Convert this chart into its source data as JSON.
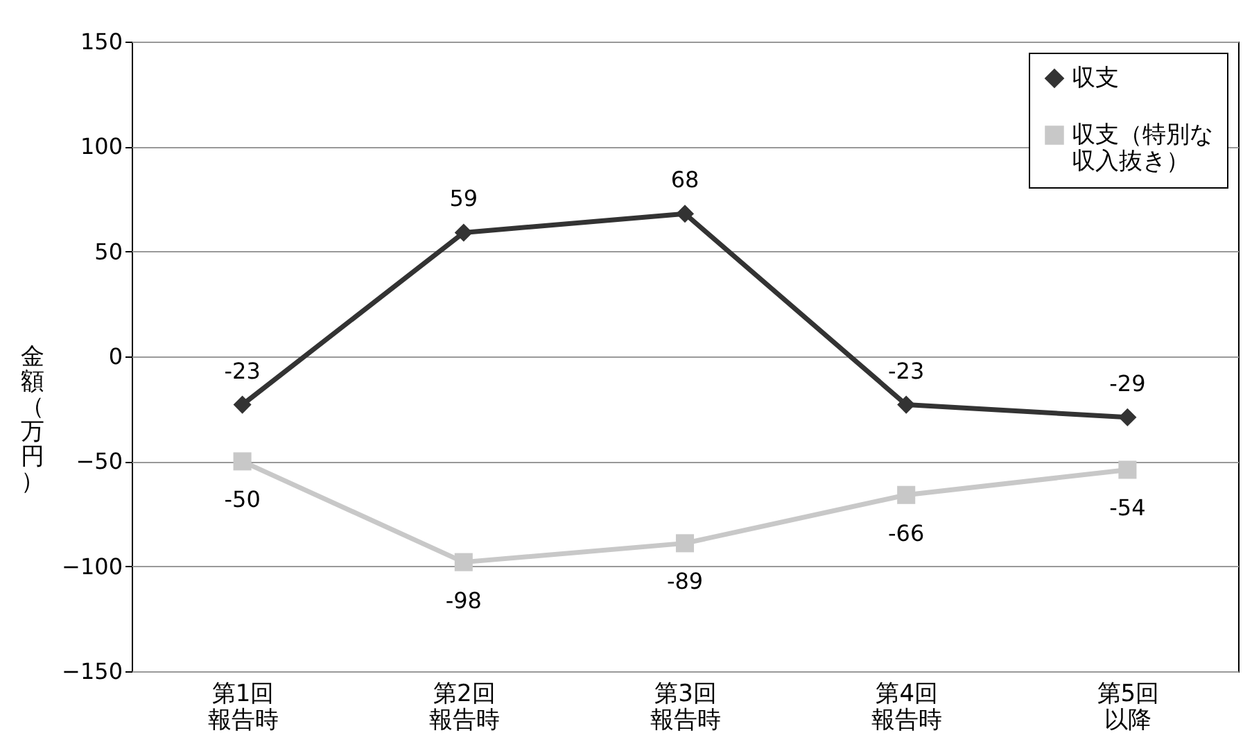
{
  "chart_data": {
    "type": "line",
    "ylabel": "金額（万円）",
    "categories": [
      "第1回報告時",
      "第2回報告時",
      "第3回報告時",
      "第4回報告時",
      "第5回以降"
    ],
    "series": [
      {
        "name": "収支",
        "color": "#333333",
        "marker": "diamond",
        "values": [
          -23,
          59,
          68,
          -23,
          -29
        ]
      },
      {
        "name": "収支（特別な収入抜き）",
        "color": "#c8c8c8",
        "marker": "square",
        "values": [
          -50,
          -98,
          -89,
          -66,
          -54
        ]
      }
    ],
    "ylim": [
      -150,
      150
    ],
    "yticks": [
      -150,
      -100,
      -50,
      0,
      50,
      100,
      150
    ],
    "grid": "y",
    "legend": "top right",
    "data_labels": true
  }
}
